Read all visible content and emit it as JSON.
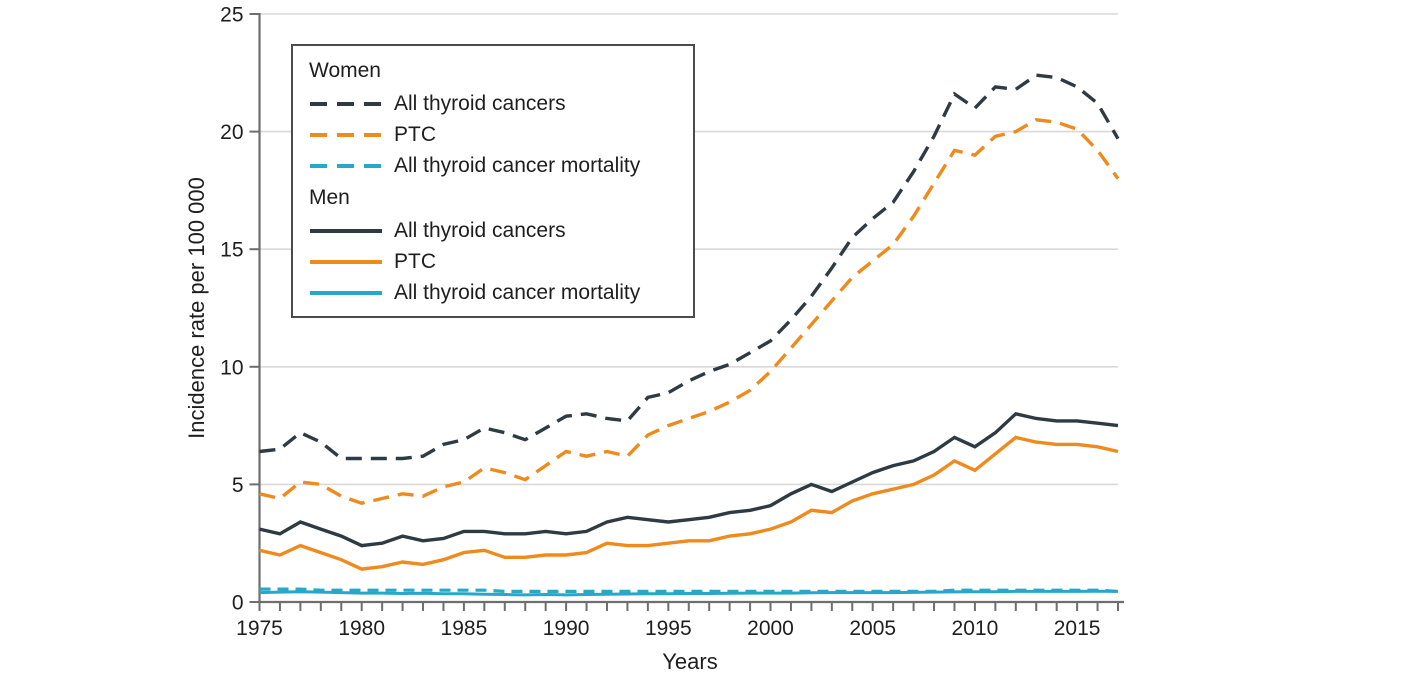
{
  "figure": {
    "y_axis_label": "Incidence rate per 100 000",
    "x_axis_label": "Years",
    "y_ticks": [
      0,
      5,
      10,
      15,
      20,
      25
    ],
    "x_tick_labels": [
      1975,
      1980,
      1985,
      1990,
      1995,
      2000,
      2005,
      2010,
      2015
    ]
  },
  "theme": {
    "background": "#ffffff",
    "grid_color": "#d9d9d9",
    "axis_color": "#6e6e6e",
    "text_color": "#1e1e1e",
    "legend_border_color": "#4c4c4c",
    "dark_series_color": "#2e3b42",
    "orange_series_color": "#ef8a1d",
    "teal_series_color": "#27a8c8"
  },
  "legend": {
    "group_women": "Women",
    "group_men": "Men"
  },
  "chart_data": {
    "type": "line",
    "title": "",
    "xlabel": "Years",
    "ylabel": "Incidence rate per 100 000",
    "xlim": [
      1975,
      2017
    ],
    "ylim": [
      0,
      25
    ],
    "grid": "horizontal gridlines at 5,10,15,20,25",
    "legend_position": "upper-left inside plot, boxed",
    "x": [
      1975,
      1976,
      1977,
      1978,
      1979,
      1980,
      1981,
      1982,
      1983,
      1984,
      1985,
      1986,
      1987,
      1988,
      1989,
      1990,
      1991,
      1992,
      1993,
      1994,
      1995,
      1996,
      1997,
      1998,
      1999,
      2000,
      2001,
      2002,
      2003,
      2004,
      2005,
      2006,
      2007,
      2008,
      2009,
      2010,
      2011,
      2012,
      2013,
      2014,
      2015,
      2016,
      2017
    ],
    "series": [
      {
        "id": "women-all-thyroid-cancers",
        "group": "Women",
        "label": "All thyroid cancers",
        "style": "dashed",
        "color": "#2e3b42",
        "dasharray": "16 9",
        "legend_dash": "17 10",
        "width": 3.4,
        "values": [
          6.4,
          6.5,
          7.2,
          6.8,
          6.1,
          6.1,
          6.1,
          6.1,
          6.2,
          6.7,
          6.9,
          7.4,
          7.2,
          6.9,
          7.4,
          7.9,
          8.0,
          7.8,
          7.7,
          8.7,
          8.9,
          9.4,
          9.8,
          10.1,
          10.6,
          11.1,
          12.0,
          13.0,
          14.2,
          15.5,
          16.3,
          17.0,
          18.3,
          19.8,
          21.6,
          21.0,
          21.9,
          21.8,
          22.4,
          22.3,
          21.9,
          21.2,
          19.7
        ]
      },
      {
        "id": "women-ptc",
        "group": "Women",
        "label": "PTC",
        "style": "dashed",
        "color": "#ef8a1d",
        "dasharray": "16 9",
        "legend_dash": "17 10",
        "width": 3.4,
        "values": [
          4.6,
          4.4,
          5.1,
          5.0,
          4.5,
          4.2,
          4.4,
          4.6,
          4.5,
          4.9,
          5.1,
          5.7,
          5.5,
          5.2,
          5.8,
          6.4,
          6.2,
          6.4,
          6.2,
          7.1,
          7.5,
          7.8,
          8.1,
          8.5,
          9.0,
          9.8,
          10.8,
          11.8,
          12.8,
          13.8,
          14.5,
          15.2,
          16.4,
          17.8,
          19.2,
          19.0,
          19.8,
          20.0,
          20.5,
          20.4,
          20.1,
          19.2,
          18.0
        ]
      },
      {
        "id": "women-all-thyroid-cancer-mortality",
        "group": "Women",
        "label": "All thyroid cancer mortality",
        "style": "dashed",
        "color": "#27a8c8",
        "dasharray": "11 7",
        "legend_dash": "17 10",
        "width": 3.2,
        "values": [
          0.55,
          0.55,
          0.55,
          0.5,
          0.5,
          0.5,
          0.5,
          0.5,
          0.5,
          0.5,
          0.5,
          0.5,
          0.45,
          0.45,
          0.45,
          0.45,
          0.45,
          0.45,
          0.45,
          0.45,
          0.45,
          0.45,
          0.45,
          0.45,
          0.45,
          0.45,
          0.45,
          0.45,
          0.45,
          0.45,
          0.45,
          0.45,
          0.45,
          0.45,
          0.5,
          0.5,
          0.5,
          0.5,
          0.5,
          0.5,
          0.5,
          0.5,
          0.45
        ]
      },
      {
        "id": "men-all-thyroid-cancers",
        "group": "Men",
        "label": "All thyroid cancers",
        "style": "solid",
        "color": "#2e3b42",
        "dasharray": "none",
        "legend_dash": "none",
        "width": 3.4,
        "values": [
          3.1,
          2.9,
          3.4,
          3.1,
          2.8,
          2.4,
          2.5,
          2.8,
          2.6,
          2.7,
          3.0,
          3.0,
          2.9,
          2.9,
          3.0,
          2.9,
          3.0,
          3.4,
          3.6,
          3.5,
          3.4,
          3.5,
          3.6,
          3.8,
          3.9,
          4.1,
          4.6,
          5.0,
          4.7,
          5.1,
          5.5,
          5.8,
          6.0,
          6.4,
          7.0,
          6.6,
          7.2,
          8.0,
          7.8,
          7.7,
          7.7,
          7.6,
          7.5
        ]
      },
      {
        "id": "men-ptc",
        "group": "Men",
        "label": "PTC",
        "style": "solid",
        "color": "#ef8a1d",
        "dasharray": "none",
        "legend_dash": "none",
        "width": 3.4,
        "values": [
          2.2,
          2.0,
          2.4,
          2.1,
          1.8,
          1.4,
          1.5,
          1.7,
          1.6,
          1.8,
          2.1,
          2.2,
          1.9,
          1.9,
          2.0,
          2.0,
          2.1,
          2.5,
          2.4,
          2.4,
          2.5,
          2.6,
          2.6,
          2.8,
          2.9,
          3.1,
          3.4,
          3.9,
          3.8,
          4.3,
          4.6,
          4.8,
          5.0,
          5.4,
          6.0,
          5.6,
          6.3,
          7.0,
          6.8,
          6.7,
          6.7,
          6.6,
          6.4
        ]
      },
      {
        "id": "men-all-thyroid-cancer-mortality",
        "group": "Men",
        "label": "All thyroid cancer mortality",
        "style": "solid",
        "color": "#27a8c8",
        "dasharray": "none",
        "legend_dash": "none",
        "width": 3.0,
        "values": [
          0.4,
          0.42,
          0.44,
          0.42,
          0.4,
          0.38,
          0.38,
          0.36,
          0.37,
          0.35,
          0.35,
          0.33,
          0.32,
          0.3,
          0.32,
          0.3,
          0.32,
          0.33,
          0.34,
          0.35,
          0.35,
          0.36,
          0.36,
          0.37,
          0.38,
          0.38,
          0.38,
          0.39,
          0.4,
          0.4,
          0.4,
          0.4,
          0.41,
          0.42,
          0.43,
          0.44,
          0.44,
          0.45,
          0.45,
          0.45,
          0.45,
          0.46,
          0.45
        ]
      }
    ]
  }
}
